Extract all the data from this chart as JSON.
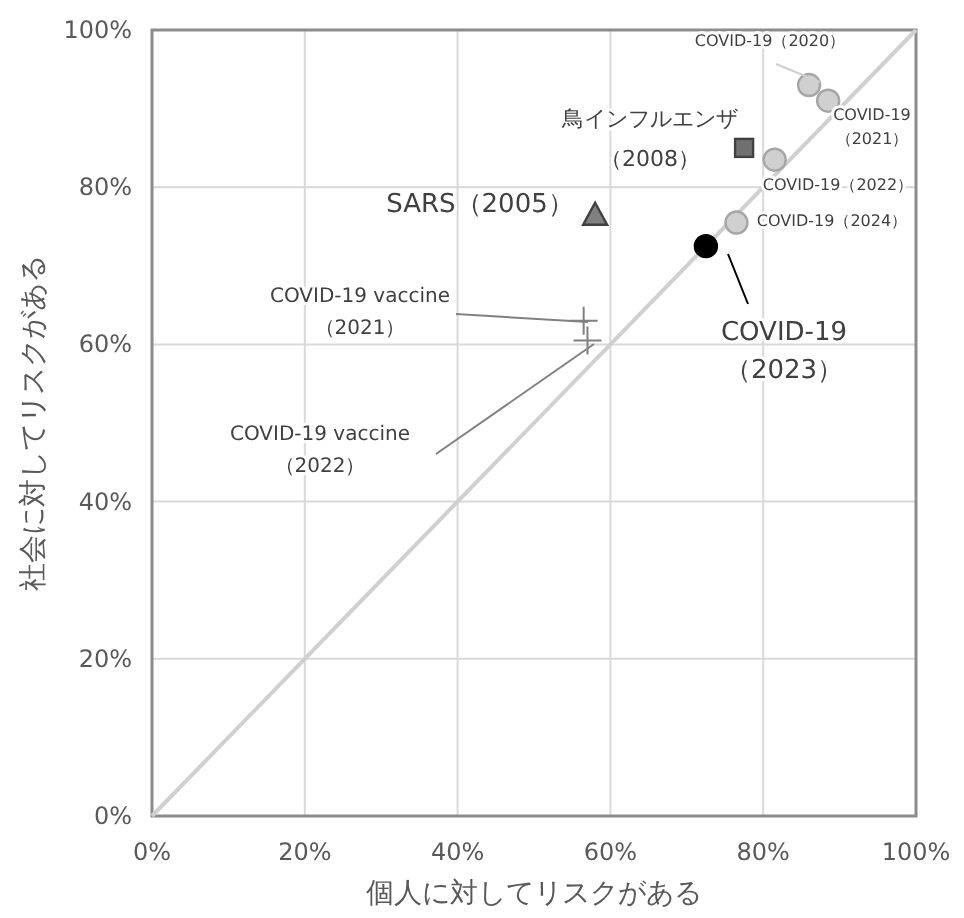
{
  "chart_data": {
    "type": "scatter",
    "xlabel": "個人に対してリスクがある",
    "ylabel": "社会に対してリスクがある",
    "xlim": [
      0,
      100
    ],
    "ylim": [
      0,
      100
    ],
    "xticks": [
      {
        "value": 0,
        "label": "0%"
      },
      {
        "value": 20,
        "label": "20%"
      },
      {
        "value": 40,
        "label": "40%"
      },
      {
        "value": 60,
        "label": "60%"
      },
      {
        "value": 80,
        "label": "80%"
      },
      {
        "value": 100,
        "label": "100%"
      }
    ],
    "yticks": [
      {
        "value": 0,
        "label": "0%"
      },
      {
        "value": 20,
        "label": "20%"
      },
      {
        "value": 40,
        "label": "40%"
      },
      {
        "value": 60,
        "label": "60%"
      },
      {
        "value": 80,
        "label": "80%"
      },
      {
        "value": 100,
        "label": "100%"
      }
    ],
    "grid": true,
    "series": [
      {
        "type": "line",
        "color": "#d0d0d0",
        "x": [
          0,
          100
        ],
        "values": [
          0,
          100
        ],
        "marker": "none"
      },
      {
        "name": "COVID-19（2020）",
        "color": "#d0d0d0",
        "x": [
          86
        ],
        "values": [
          93
        ],
        "marker": "circle"
      },
      {
        "name": "COVID-19（2021）",
        "color": "#d0d0d0",
        "x": [
          88.5
        ],
        "values": [
          91
        ],
        "marker": "circle"
      },
      {
        "name": "鳥インフルエンザ（2008）",
        "color": "#707070",
        "x": [
          77.5
        ],
        "values": [
          85
        ],
        "marker": "square"
      },
      {
        "name": "COVID-19（2022）",
        "color": "#d0d0d0",
        "x": [
          81.5
        ],
        "values": [
          83.5
        ],
        "marker": "circle"
      },
      {
        "name": "COVID-19（2024）",
        "color": "#d0d0d0",
        "x": [
          76.5
        ],
        "values": [
          75.5
        ],
        "marker": "circle"
      },
      {
        "name": "SARS（2005）",
        "color": "#808080",
        "x": [
          58
        ],
        "values": [
          76.5
        ],
        "marker": "triangle"
      },
      {
        "name": "COVID-19（2023）",
        "color": "#000000",
        "x": [
          72.5
        ],
        "values": [
          72.5
        ],
        "marker": "circle"
      },
      {
        "name": "COVID-19 vaccine（2021）",
        "color": "#808080",
        "x": [
          56.5
        ],
        "values": [
          63
        ],
        "marker": "cross"
      },
      {
        "name": "COVID-19 vaccine（2022）",
        "color": "#808080",
        "x": [
          57
        ],
        "values": [
          60.5
        ],
        "marker": "cross"
      }
    ]
  }
}
